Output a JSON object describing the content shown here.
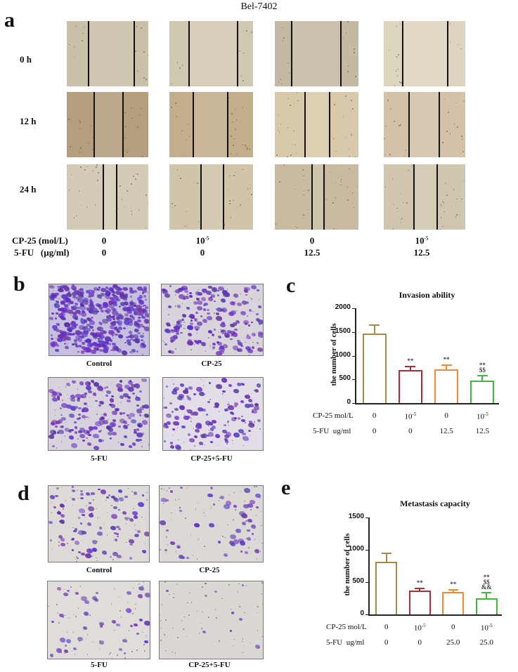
{
  "figure": {
    "title": "Bel-7402",
    "panels": {
      "a": {
        "letter": "a",
        "time_points": [
          "0 h",
          "12 h",
          "24 h"
        ],
        "conditions": {
          "cp25_label": "CP-25 (mol/L)",
          "fu_label": "5-FU   (µg/ml)",
          "cp25_values": [
            "0",
            "10",
            "0",
            "10"
          ],
          "cp25_exponents": [
            "",
            "-5",
            "",
            "-5"
          ],
          "fu_values": [
            "0",
            "0",
            "12.5",
            "12.5"
          ]
        }
      },
      "b": {
        "letter": "b",
        "labels": [
          "Control",
          "CP-25",
          "5-FU",
          "CP-25+5-FU"
        ]
      },
      "c": {
        "letter": "c"
      },
      "d": {
        "letter": "d",
        "labels": [
          "Control",
          "CP-25",
          "5-FU",
          "CP-25+5-FU"
        ]
      },
      "e": {
        "letter": "e"
      }
    }
  },
  "chart_data": [
    {
      "type": "bar",
      "panel": "c",
      "title": "Invasion ability",
      "ylabel": "the number of cells",
      "xlabel": "",
      "ylim": [
        0,
        2000
      ],
      "yticks": [
        "2000",
        "1500",
        "1000",
        "500",
        "0"
      ],
      "categories": [
        "Control",
        "CP-25",
        "5-FU",
        "CP-25+5-FU"
      ],
      "x_rows": [
        {
          "label": "CP-25 mol/L",
          "values": [
            "0",
            "10",
            "0",
            "10"
          ],
          "exponents": [
            "",
            "-5",
            "",
            "-5"
          ]
        },
        {
          "label": "5-FU  ug/ml",
          "values": [
            "0",
            "0",
            "12.5",
            "12.5"
          ]
        }
      ],
      "values": [
        1460,
        690,
        715,
        470
      ],
      "errors": [
        200,
        90,
        100,
        120
      ],
      "colors": [
        "#a88a4a",
        "#a5303a",
        "#f08a3a",
        "#3dbb3d"
      ],
      "annotations": [
        "",
        "**",
        "**",
        "**\n$$"
      ],
      "grid": false,
      "legend": "none"
    },
    {
      "type": "bar",
      "panel": "e",
      "title": "Metastasis capacity",
      "ylabel": "the number of cells",
      "xlabel": "",
      "ylim": [
        0,
        1500
      ],
      "yticks": [
        "1500",
        "1000",
        "500",
        "0"
      ],
      "categories": [
        "Control",
        "CP-25",
        "5-FU",
        "CP-25+5-FU"
      ],
      "x_rows": [
        {
          "label": "CP-25 mol/L",
          "values": [
            "0",
            "10",
            "0",
            "10"
          ],
          "exponents": [
            "",
            "-5",
            "",
            "-5"
          ]
        },
        {
          "label": "5-FU  ug/ml",
          "values": [
            "0",
            "0",
            "25.0",
            "25.0"
          ]
        }
      ],
      "values": [
        810,
        370,
        345,
        255
      ],
      "errors": [
        145,
        45,
        50,
        95
      ],
      "colors": [
        "#a88a4a",
        "#a5303a",
        "#f08a3a",
        "#3dbb3d"
      ],
      "annotations": [
        "",
        "**",
        "**",
        "**\n$$\n&&"
      ],
      "grid": false,
      "legend": "none"
    }
  ]
}
